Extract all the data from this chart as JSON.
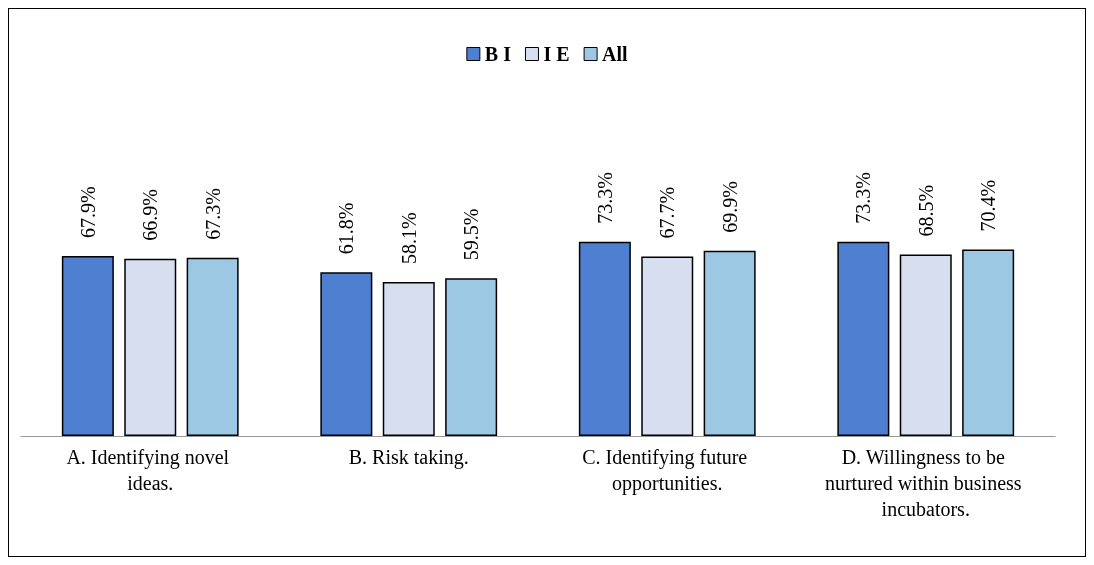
{
  "chart_data": {
    "type": "bar",
    "categories": [
      "A. Identifying novel ideas.",
      "B. Risk taking.",
      "C. Identifying future opportunities.",
      "D. Willingness to be nurtured within business incubators."
    ],
    "series": [
      {
        "name": "B I",
        "color": "#4f7fd0",
        "values": [
          67.9,
          61.8,
          73.3,
          73.3
        ],
        "value_labels": [
          "67.9%",
          "61.8%",
          "73.3%",
          "73.3%"
        ]
      },
      {
        "name": "I E",
        "color": "#d6def0",
        "values": [
          66.9,
          58.1,
          67.7,
          68.5
        ],
        "value_labels": [
          "66.9%",
          "58.1%",
          "67.7%",
          "68.5%"
        ]
      },
      {
        "name": "All",
        "color": "#9cc8e4",
        "values": [
          67.3,
          59.5,
          69.9,
          70.4
        ],
        "value_labels": [
          "67.3%",
          "59.5%",
          "69.9%",
          "70.4%"
        ]
      }
    ],
    "legend": "top",
    "grid": false
  }
}
